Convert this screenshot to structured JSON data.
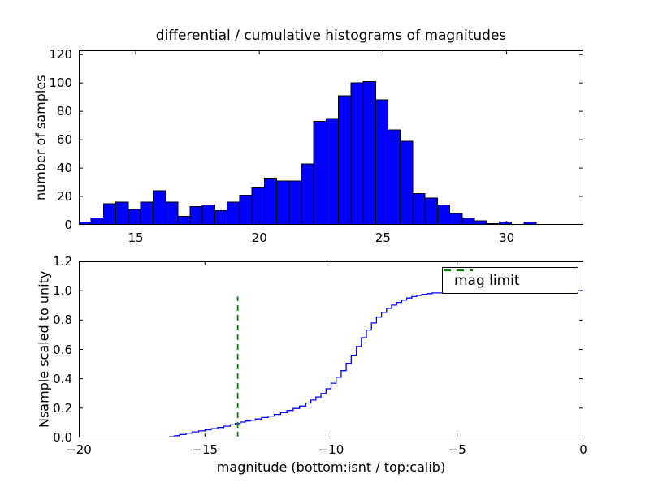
{
  "title": "differential / cumulative histograms of magnitudes",
  "xlabel": "magnitude (bottom:isnt / top:calib)",
  "colors": {
    "background": "#ffffff",
    "bar_fill": "#0000ff",
    "bar_edge": "#000000",
    "curve": "#0000ff",
    "limit_line": "#008000",
    "axes": "#000000"
  },
  "chart_data": [
    {
      "type": "bar",
      "subplot": "top",
      "title": "differential / cumulative histograms of magnitudes",
      "ylabel": "number of samples",
      "xlim": [
        12.7,
        33.1
      ],
      "ylim": [
        0,
        120
      ],
      "xticks": [
        15,
        20,
        25,
        30
      ],
      "xticklabels": [
        "15",
        "20",
        "25",
        "30"
      ],
      "yticks": [
        0,
        20,
        40,
        60,
        80,
        100,
        120
      ],
      "yticklabels": [
        "0",
        "20",
        "40",
        "60",
        "80",
        "100",
        "120"
      ],
      "grid": false,
      "bin_start": 12.7,
      "bin_width": 0.5,
      "values": [
        2,
        5,
        15,
        16,
        11,
        16,
        24,
        16,
        6,
        13,
        14,
        10,
        16,
        21,
        26,
        33,
        31,
        31,
        43,
        73,
        75,
        91,
        100,
        101,
        88,
        67,
        59,
        22,
        19,
        14,
        8,
        5,
        3,
        1,
        2,
        0,
        2,
        0,
        0,
        0,
        0
      ]
    },
    {
      "type": "line",
      "subplot": "bottom",
      "ylabel": "Nsample scaled to unity",
      "xlim": [
        -20,
        0
      ],
      "ylim": [
        0,
        1.2
      ],
      "xticks": [
        -20,
        -15,
        -10,
        -5,
        0
      ],
      "xticklabels": [
        "−20",
        "−15",
        "−10",
        "−5",
        "0"
      ],
      "yticks": [
        0,
        0.2,
        0.4,
        0.6,
        0.8,
        1.0,
        1.2
      ],
      "yticklabels": [
        "0.0",
        "0.2",
        "0.4",
        "0.6",
        "0.8",
        "1.0",
        "1.2"
      ],
      "grid": false,
      "line_style": "step",
      "points": [
        [
          -20,
          0
        ],
        [
          -16.6,
          0
        ],
        [
          -16.4,
          0.005
        ],
        [
          -16.2,
          0.012
        ],
        [
          -16,
          0.02
        ],
        [
          -15.75,
          0.03
        ],
        [
          -15.5,
          0.038
        ],
        [
          -15.25,
          0.045
        ],
        [
          -15,
          0.052
        ],
        [
          -14.75,
          0.06
        ],
        [
          -14.5,
          0.068
        ],
        [
          -14.25,
          0.077
        ],
        [
          -14,
          0.086
        ],
        [
          -13.8,
          0.095
        ],
        [
          -13.6,
          0.105
        ],
        [
          -13.4,
          0.112
        ],
        [
          -13.2,
          0.118
        ],
        [
          -13,
          0.126
        ],
        [
          -12.75,
          0.136
        ],
        [
          -12.5,
          0.146
        ],
        [
          -12.25,
          0.157
        ],
        [
          -12,
          0.17
        ],
        [
          -11.75,
          0.184
        ],
        [
          -11.5,
          0.198
        ],
        [
          -11.25,
          0.214
        ],
        [
          -11,
          0.235
        ],
        [
          -10.8,
          0.255
        ],
        [
          -10.6,
          0.276
        ],
        [
          -10.4,
          0.3
        ],
        [
          -10.2,
          0.332
        ],
        [
          -10,
          0.37
        ],
        [
          -9.8,
          0.41
        ],
        [
          -9.6,
          0.455
        ],
        [
          -9.4,
          0.505
        ],
        [
          -9.2,
          0.56
        ],
        [
          -9,
          0.62
        ],
        [
          -8.8,
          0.68
        ],
        [
          -8.6,
          0.732
        ],
        [
          -8.4,
          0.78
        ],
        [
          -8.2,
          0.82
        ],
        [
          -8,
          0.852
        ],
        [
          -7.8,
          0.88
        ],
        [
          -7.6,
          0.902
        ],
        [
          -7.4,
          0.92
        ],
        [
          -7.2,
          0.936
        ],
        [
          -7,
          0.95
        ],
        [
          -6.8,
          0.96
        ],
        [
          -6.6,
          0.968
        ],
        [
          -6.4,
          0.975
        ],
        [
          -6.2,
          0.98
        ],
        [
          -6,
          0.985
        ],
        [
          -5.5,
          0.99
        ],
        [
          -5,
          0.994
        ],
        [
          -4.5,
          0.997
        ],
        [
          -4,
          1.0
        ],
        [
          0,
          1.0
        ]
      ],
      "vline": {
        "x": -13.7,
        "y_from": 0,
        "y_to": 0.96,
        "style": "dashed",
        "label": "mag limit"
      },
      "legend": {
        "label": "mag limit",
        "position": "upper right"
      }
    }
  ]
}
